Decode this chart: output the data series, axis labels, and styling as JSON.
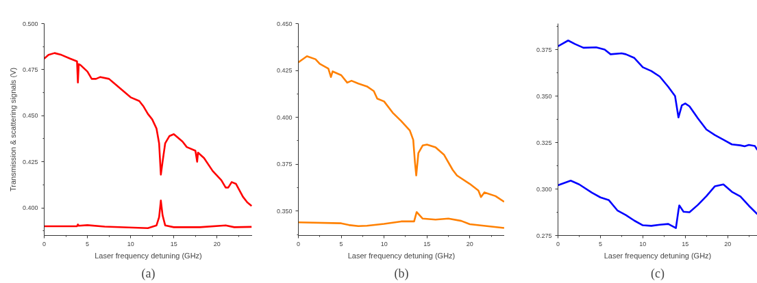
{
  "chart_data": [
    {
      "type": "line",
      "xlabel": "Laser frequency detuning (GHz)",
      "ylabel": "Transmission & scattering signals (V)",
      "annotations": [
        "(a)"
      ],
      "xlim": [
        0,
        24.1
      ],
      "ylim": [
        0.385,
        0.5
      ],
      "xticks": [
        0,
        5,
        10,
        15,
        20
      ],
      "yticks": [
        {
          "value": 0.4,
          "label": "0.400"
        },
        {
          "value": 0.425,
          "label": "0.425"
        },
        {
          "value": 0.45,
          "label": "0.450"
        },
        {
          "value": 0.475,
          "label": "0.475"
        },
        {
          "value": 0.5,
          "label": "0.500"
        }
      ],
      "grid": false,
      "marker": "none",
      "line_style": "solid",
      "series": [
        {
          "color": "#ff0000",
          "x": [
            0,
            0.5,
            1.2,
            2,
            3,
            3.8,
            3.9,
            4.0,
            4.2,
            5,
            5.5,
            6,
            6.5,
            7.5,
            8,
            9,
            10,
            11,
            11.5,
            12,
            12.5,
            13,
            13.3,
            13.5,
            13.7,
            14,
            14.5,
            15,
            16,
            16.5,
            17.5,
            17.7,
            17.8,
            18.5,
            19.5,
            20.5,
            21,
            21.3,
            21.7,
            22.2,
            23,
            23.5,
            24
          ],
          "values": [
            0.481,
            0.483,
            0.484,
            0.483,
            0.481,
            0.4795,
            0.468,
            0.478,
            0.4775,
            0.474,
            0.47,
            0.47,
            0.471,
            0.47,
            0.468,
            0.464,
            0.46,
            0.458,
            0.455,
            0.451,
            0.448,
            0.443,
            0.435,
            0.418,
            0.425,
            0.435,
            0.439,
            0.44,
            0.436,
            0.433,
            0.431,
            0.425,
            0.43,
            0.427,
            0.42,
            0.415,
            0.411,
            0.411,
            0.414,
            0.413,
            0.406,
            0.403,
            0.401
          ]
        },
        {
          "color": "#ff0000",
          "x": [
            0,
            3.8,
            3.9,
            4.0,
            5,
            7,
            12,
            13,
            13.3,
            13.5,
            13.7,
            14,
            15,
            18,
            21,
            22,
            24
          ],
          "values": [
            0.39,
            0.39,
            0.391,
            0.3903,
            0.3906,
            0.3898,
            0.389,
            0.3905,
            0.395,
            0.404,
            0.396,
            0.3905,
            0.3895,
            0.3895,
            0.3905,
            0.3895,
            0.3897
          ]
        }
      ]
    },
    {
      "type": "line",
      "xlabel": "Laser frequency detuning (GHz)",
      "annotations": [
        "(b)"
      ],
      "xlim": [
        0,
        24.05
      ],
      "ylim": [
        0.337,
        0.45
      ],
      "xticks": [
        0,
        5,
        10,
        15,
        20
      ],
      "yticks": [
        {
          "value": 0.35,
          "label": "0.350"
        },
        {
          "value": 0.375,
          "label": "0.375"
        },
        {
          "value": 0.4,
          "label": "0.400"
        },
        {
          "value": 0.425,
          "label": "0.425"
        },
        {
          "value": 0.45,
          "label": "0.450"
        }
      ],
      "grid": false,
      "marker": "none",
      "line_style": "solid",
      "series": [
        {
          "color": "#ff8000",
          "x": [
            0,
            1,
            2,
            2.5,
            3.5,
            3.8,
            4,
            5,
            5.7,
            6.2,
            7,
            8,
            8.8,
            9.2,
            10,
            11,
            12,
            13,
            13.4,
            13.6,
            13.75,
            14,
            14.5,
            15,
            16,
            17,
            18,
            18.5,
            20,
            21,
            21.3,
            21.7,
            23,
            24
          ],
          "values": [
            0.4293,
            0.4326,
            0.431,
            0.4285,
            0.426,
            0.4215,
            0.4245,
            0.4225,
            0.4185,
            0.4195,
            0.418,
            0.4165,
            0.414,
            0.41,
            0.4085,
            0.4025,
            0.398,
            0.393,
            0.388,
            0.376,
            0.369,
            0.381,
            0.385,
            0.3855,
            0.384,
            0.38,
            0.372,
            0.369,
            0.3645,
            0.361,
            0.3575,
            0.36,
            0.358,
            0.355
          ]
        },
        {
          "color": "#ff8000",
          "x": [
            0,
            5,
            6,
            7,
            8,
            10,
            12,
            13.5,
            13.8,
            14.5,
            16,
            17.5,
            19,
            20,
            22,
            24
          ],
          "values": [
            0.344,
            0.3435,
            0.3425,
            0.342,
            0.3422,
            0.3432,
            0.3445,
            0.3445,
            0.3495,
            0.346,
            0.3455,
            0.346,
            0.3448,
            0.343,
            0.342,
            0.341
          ]
        }
      ]
    },
    {
      "type": "line",
      "xlabel": "Laser frequency detuning (GHz)",
      "annotations": [
        "(c)"
      ],
      "xlim": [
        0,
        23.5
      ],
      "ylim": [
        0.275,
        0.389
      ],
      "xticks": [
        0,
        5,
        10,
        15,
        20
      ],
      "yticks": [
        {
          "value": 0.275,
          "label": "0.275"
        },
        {
          "value": 0.3,
          "label": "0.300"
        },
        {
          "value": 0.325,
          "label": "0.325"
        },
        {
          "value": 0.35,
          "label": "0.350"
        },
        {
          "value": 0.375,
          "label": "0.375"
        }
      ],
      "grid": false,
      "marker": "none",
      "line_style": "solid",
      "series": [
        {
          "color": "#0000ff",
          "x": [
            0,
            1.2,
            2,
            3,
            4.5,
            5.5,
            6.2,
            7.5,
            8,
            9,
            10,
            11,
            12,
            13,
            13.8,
            14.2,
            14.6,
            15,
            15.5,
            16.5,
            17.5,
            18.5,
            19.5,
            20.5,
            21.5,
            22,
            22.5,
            23.2,
            23.5
          ],
          "values": [
            0.3768,
            0.3799,
            0.378,
            0.376,
            0.3762,
            0.375,
            0.3725,
            0.373,
            0.3725,
            0.3705,
            0.3655,
            0.3635,
            0.3605,
            0.355,
            0.35,
            0.3385,
            0.345,
            0.346,
            0.3445,
            0.338,
            0.332,
            0.329,
            0.3265,
            0.324,
            0.3235,
            0.323,
            0.3237,
            0.3232,
            0.321
          ]
        },
        {
          "color": "#0000ff",
          "x": [
            0,
            1.5,
            2.5,
            4,
            5,
            6,
            7,
            8,
            9,
            10,
            11,
            12,
            13,
            13.9,
            14.2,
            14.3,
            14.8,
            15.5,
            16.5,
            17.5,
            18.5,
            19.5,
            20.5,
            21.5,
            22.5,
            23.5
          ],
          "values": [
            0.302,
            0.3045,
            0.3025,
            0.298,
            0.2955,
            0.294,
            0.2885,
            0.286,
            0.283,
            0.2805,
            0.2802,
            0.2808,
            0.2812,
            0.279,
            0.2885,
            0.2912,
            0.2878,
            0.2875,
            0.2915,
            0.2962,
            0.3015,
            0.3025,
            0.2985,
            0.296,
            0.291,
            0.2865
          ]
        }
      ]
    }
  ]
}
